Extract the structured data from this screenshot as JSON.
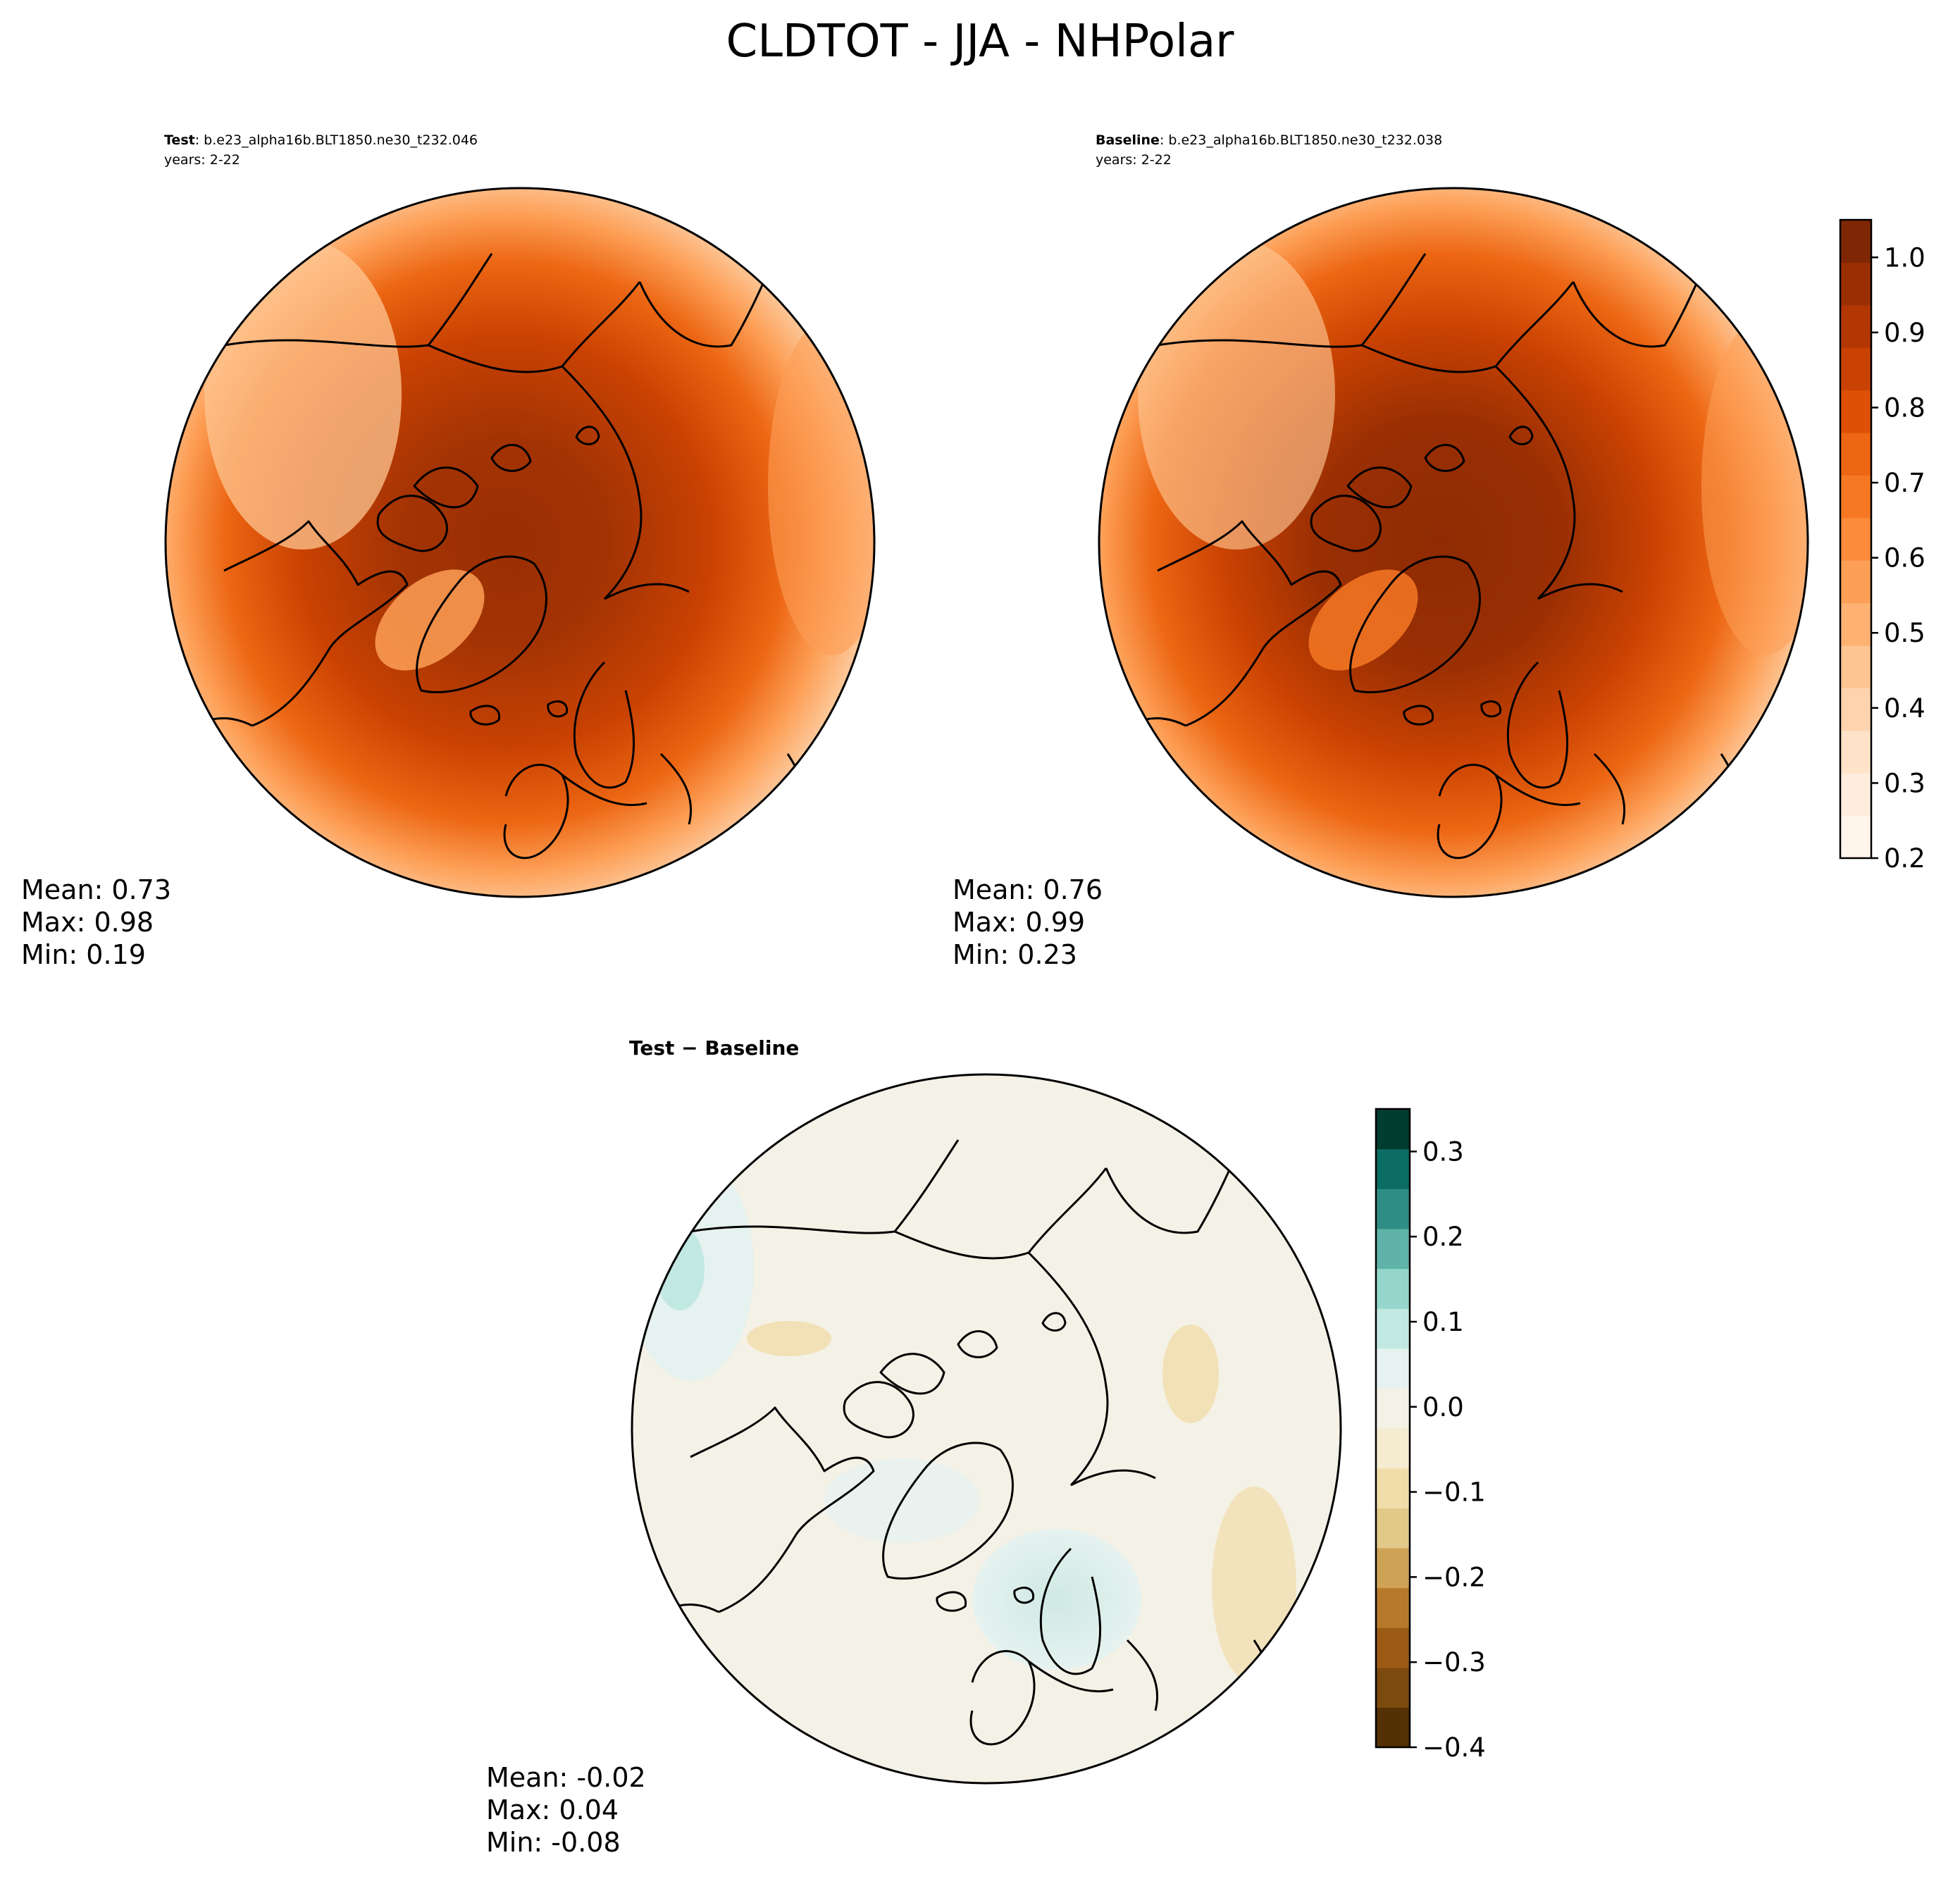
{
  "figure": {
    "title": "CLDTOT - JJA - NHPolar"
  },
  "chart_data": [
    {
      "type": "heatmap",
      "panel": "test",
      "header_bold": "Test",
      "header_rest": ": b.e23_alpha16b.BLT1850.ne30_t232.046",
      "years": "years: 2-22",
      "stats": {
        "mean": "Mean:  0.73",
        "max": "Max:  0.98",
        "min": "Min:  0.19"
      },
      "projection": "north polar stereographic",
      "value_range": [
        0.19,
        0.98
      ]
    },
    {
      "type": "heatmap",
      "panel": "baseline",
      "header_bold": "Baseline",
      "header_rest": ": b.e23_alpha16b.BLT1850.ne30_t232.038",
      "years": "years: 2-22",
      "stats": {
        "mean": "Mean:  0.76",
        "max": "Max:  0.99",
        "min": "Min:  0.23"
      },
      "projection": "north polar stereographic",
      "value_range": [
        0.23,
        0.99
      ]
    },
    {
      "type": "heatmap",
      "panel": "difference",
      "header_bold": "Test − Baseline",
      "stats": {
        "mean": "Mean: -0.02",
        "max": "Max:  0.04",
        "min": "Min: -0.08"
      },
      "projection": "north polar stereographic",
      "value_range": [
        -0.08,
        0.04
      ]
    }
  ],
  "colorbars": {
    "main": {
      "min": 0.2,
      "max": 1.05,
      "ticks": [
        0.2,
        0.3,
        0.4,
        0.5,
        0.6,
        0.7,
        0.8,
        0.9,
        1.0
      ],
      "tick_labels": [
        "0.2",
        "0.3",
        "0.4",
        "0.5",
        "0.6",
        "0.7",
        "0.8",
        "0.9",
        "1.0"
      ],
      "colors": [
        "#fff5eb",
        "#feeddc",
        "#fee3c8",
        "#fdd4ae",
        "#fdc591",
        "#fdb272",
        "#fd9f56",
        "#fc8b3a",
        "#f67824",
        "#ec6613",
        "#de5006",
        "#c94202",
        "#b23703",
        "#9a2f03",
        "#7f2704"
      ]
    },
    "diff": {
      "min": -0.4,
      "max": 0.35,
      "ticks": [
        -0.4,
        -0.3,
        -0.2,
        -0.1,
        0.0,
        0.1,
        0.2,
        0.3
      ],
      "tick_labels": [
        "−0.4",
        "−0.3",
        "−0.2",
        "−0.1",
        "0.0",
        "0.1",
        "0.2",
        "0.3"
      ],
      "colors": [
        "#543005",
        "#7c4a0c",
        "#9c5b14",
        "#b77a2c",
        "#cfa355",
        "#e3c989",
        "#f1ddaa",
        "#f5ecd1",
        "#f4f1e6",
        "#e6f2f0",
        "#c2e8e2",
        "#94d6cb",
        "#5fb3a8",
        "#2e8e85",
        "#0b6d64",
        "#003c30"
      ]
    }
  }
}
